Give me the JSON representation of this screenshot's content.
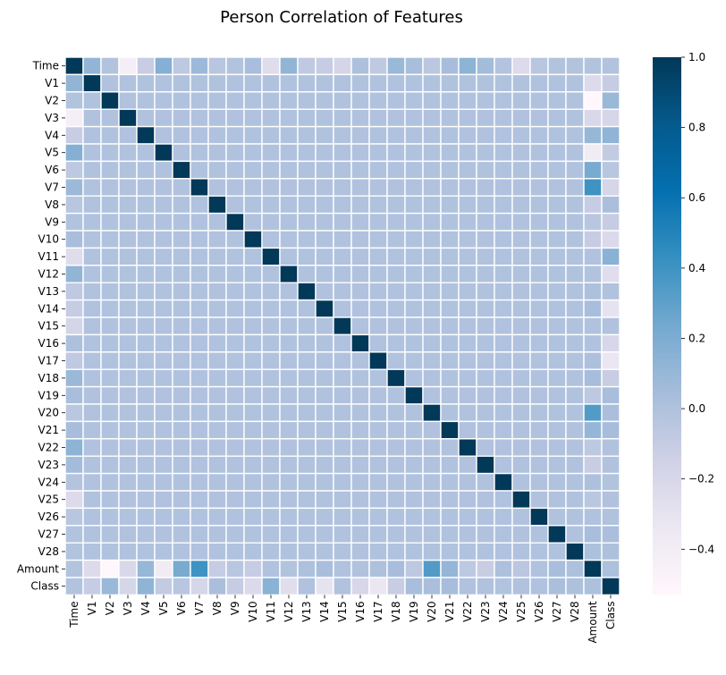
{
  "chart_data": {
    "type": "heatmap",
    "title": "Person Correlation of Features",
    "labels": [
      "Time",
      "V1",
      "V2",
      "V3",
      "V4",
      "V5",
      "V6",
      "V7",
      "V8",
      "V9",
      "V10",
      "V11",
      "V12",
      "V13",
      "V14",
      "V15",
      "V16",
      "V17",
      "V18",
      "V19",
      "V20",
      "V21",
      "V22",
      "V23",
      "V24",
      "V25",
      "V26",
      "V27",
      "V28",
      "Amount",
      "Class"
    ],
    "time_row": [
      1.0,
      0.12,
      -0.01,
      -0.42,
      -0.11,
      0.17,
      -0.06,
      0.08,
      -0.04,
      -0.01,
      0.03,
      -0.25,
      0.12,
      -0.07,
      -0.1,
      -0.18,
      0.01,
      -0.07,
      0.09,
      0.03,
      -0.05,
      0.04,
      0.14,
      0.05,
      -0.02,
      -0.23,
      -0.04,
      -0.01,
      -0.01,
      -0.01,
      -0.01
    ],
    "amount_row": [
      -0.01,
      -0.23,
      -0.53,
      -0.21,
      0.1,
      -0.39,
      0.22,
      0.4,
      -0.1,
      -0.04,
      -0.1,
      0.0,
      -0.01,
      0.01,
      0.03,
      -0.0,
      0.0,
      0.01,
      0.04,
      -0.06,
      0.34,
      0.11,
      -0.06,
      -0.11,
      0.01,
      -0.05,
      -0.0,
      0.03,
      0.01,
      1.0,
      0.01
    ],
    "class_row": [
      -0.01,
      -0.1,
      0.09,
      -0.19,
      0.13,
      -0.09,
      -0.04,
      -0.19,
      0.02,
      -0.1,
      -0.22,
      0.15,
      -0.26,
      -0.0,
      -0.3,
      -0.0,
      -0.2,
      -0.33,
      -0.11,
      0.03,
      0.02,
      0.04,
      0.0,
      -0.0,
      -0.01,
      0.0,
      0.0,
      0.02,
      0.01,
      0.01,
      1.0
    ],
    "other_offdiag_value": 0.0,
    "diagonal_value": 1.0,
    "colorbar": {
      "min": -0.53,
      "max": 1.0,
      "ticks": [
        1.0,
        0.8,
        0.6,
        0.4,
        0.2,
        0.0,
        -0.2,
        -0.4
      ],
      "tick_labels": [
        "1.0",
        "0.8",
        "0.6",
        "0.4",
        "0.2",
        "0.0",
        "−0.2",
        "−0.4"
      ],
      "colormap": "PuBu"
    },
    "cell_border_color": "#ffffff",
    "grid": false
  }
}
